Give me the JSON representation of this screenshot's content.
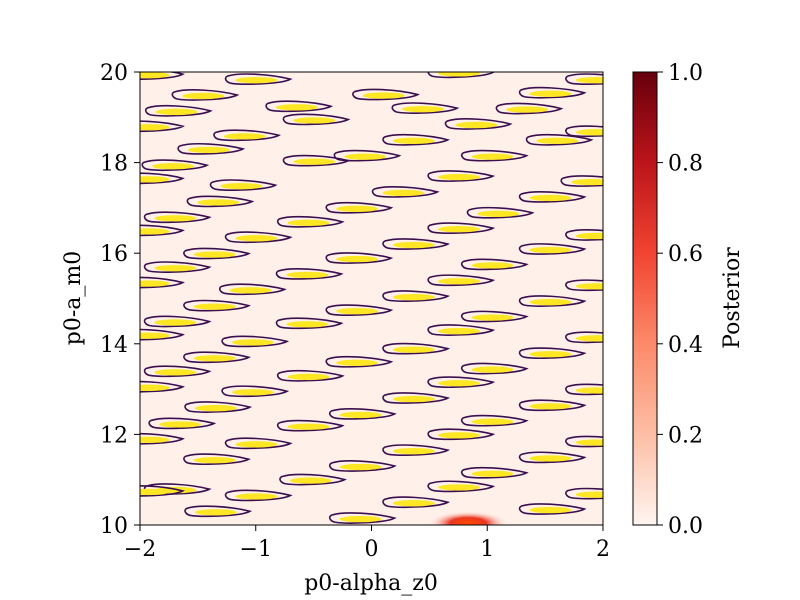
{
  "chart_data": {
    "type": "heatmap",
    "title": "",
    "xlabel": "p0-alpha_z0",
    "ylabel": "p0-a_m0",
    "xlim": [
      -2,
      2
    ],
    "ylim": [
      10,
      20
    ],
    "x_ticks": [
      -2,
      -1,
      0,
      1,
      2
    ],
    "x_tick_labels": [
      "−2",
      "−1",
      "0",
      "1",
      "2"
    ],
    "y_ticks": [
      10,
      12,
      14,
      16,
      18,
      20
    ],
    "y_tick_labels": [
      "10",
      "12",
      "14",
      "16",
      "18",
      "20"
    ],
    "colorbar": {
      "label": "Posterior",
      "range": [
        0.0,
        1.0
      ],
      "ticks": [
        0.0,
        0.2,
        0.4,
        0.6,
        0.8,
        1.0
      ],
      "tick_labels": [
        "0.0",
        "0.2",
        "0.4",
        "0.6",
        "0.8",
        "1.0"
      ],
      "colormap": [
        "#fff5f0",
        "#fdbea5",
        "#fc8a6a",
        "#f14432",
        "#bc141a",
        "#67000d"
      ]
    },
    "background_value": 0.02,
    "peak": {
      "x": 0.8,
      "y": 10.0,
      "value": 1.0
    },
    "contour_color": "#3b0f4f",
    "contour_fill_color": "#fde725",
    "contour_modes": [
      {
        "x": -1.02,
        "y": 19.82
      },
      {
        "x": -1.48,
        "y": 19.47
      },
      {
        "x": -0.67,
        "y": 19.22
      },
      {
        "x": -1.71,
        "y": 19.12
      },
      {
        "x": -1.12,
        "y": 18.58
      },
      {
        "x": -0.52,
        "y": 18.93
      },
      {
        "x": 0.08,
        "y": 19.48
      },
      {
        "x": -1.43,
        "y": 18.28
      },
      {
        "x": -1.74,
        "y": 17.92
      },
      {
        "x": -0.52,
        "y": 18.02
      },
      {
        "x": -0.08,
        "y": 18.13
      },
      {
        "x": -1.15,
        "y": 17.48
      },
      {
        "x": -1.35,
        "y": 17.12
      },
      {
        "x": -1.72,
        "y": 16.77
      },
      {
        "x": -0.57,
        "y": 16.67
      },
      {
        "x": -1.02,
        "y": 16.33
      },
      {
        "x": -0.15,
        "y": 16.98
      },
      {
        "x": -1.38,
        "y": 15.97
      },
      {
        "x": -1.72,
        "y": 15.67
      },
      {
        "x": -0.58,
        "y": 15.52
      },
      {
        "x": -1.07,
        "y": 15.18
      },
      {
        "x": -0.15,
        "y": 15.87
      },
      {
        "x": -1.38,
        "y": 14.82
      },
      {
        "x": -1.72,
        "y": 14.47
      },
      {
        "x": -0.58,
        "y": 14.43
      },
      {
        "x": -1.05,
        "y": 14.03
      },
      {
        "x": -0.15,
        "y": 14.72
      },
      {
        "x": -1.38,
        "y": 13.68
      },
      {
        "x": -1.72,
        "y": 13.37
      },
      {
        "x": -0.57,
        "y": 13.27
      },
      {
        "x": -1.05,
        "y": 12.93
      },
      {
        "x": -0.15,
        "y": 13.58
      },
      {
        "x": -1.37,
        "y": 12.58
      },
      {
        "x": -1.68,
        "y": 12.22
      },
      {
        "x": -0.57,
        "y": 12.17
      },
      {
        "x": -1.02,
        "y": 11.78
      },
      {
        "x": -0.12,
        "y": 12.43
      },
      {
        "x": -1.38,
        "y": 11.43
      },
      {
        "x": -1.72,
        "y": 10.77
      },
      {
        "x": -0.55,
        "y": 10.98
      },
      {
        "x": -1.02,
        "y": 10.63
      },
      {
        "x": -0.12,
        "y": 11.28
      },
      {
        "x": -1.37,
        "y": 10.28
      },
      {
        "x": -0.12,
        "y": 10.13
      },
      {
        "x": 0.42,
        "y": 19.18
      },
      {
        "x": 0.73,
        "y": 19.97
      },
      {
        "x": 0.88,
        "y": 18.83
      },
      {
        "x": 1.32,
        "y": 19.17
      },
      {
        "x": 1.52,
        "y": 19.52
      },
      {
        "x": 1.92,
        "y": 19.82
      },
      {
        "x": 0.34,
        "y": 18.48
      },
      {
        "x": 1.58,
        "y": 18.48
      },
      {
        "x": 1.02,
        "y": 18.13
      },
      {
        "x": 1.92,
        "y": 18.67
      },
      {
        "x": 0.25,
        "y": 17.33
      },
      {
        "x": 0.73,
        "y": 17.68
      },
      {
        "x": 1.52,
        "y": 17.22
      },
      {
        "x": 1.88,
        "y": 17.57
      },
      {
        "x": 1.07,
        "y": 16.87
      },
      {
        "x": 0.73,
        "y": 16.53
      },
      {
        "x": 0.34,
        "y": 16.18
      },
      {
        "x": 1.92,
        "y": 16.38
      },
      {
        "x": 1.52,
        "y": 16.07
      },
      {
        "x": 1.02,
        "y": 15.73
      },
      {
        "x": 0.73,
        "y": 15.38
      },
      {
        "x": 1.92,
        "y": 15.27
      },
      {
        "x": 0.34,
        "y": 15.03
      },
      {
        "x": 1.52,
        "y": 14.92
      },
      {
        "x": 1.02,
        "y": 14.58
      },
      {
        "x": 0.73,
        "y": 14.28
      },
      {
        "x": 1.92,
        "y": 14.12
      },
      {
        "x": 0.34,
        "y": 13.87
      },
      {
        "x": 1.52,
        "y": 13.77
      },
      {
        "x": 1.02,
        "y": 13.43
      },
      {
        "x": 0.73,
        "y": 13.13
      },
      {
        "x": 1.92,
        "y": 12.97
      },
      {
        "x": 0.34,
        "y": 12.78
      },
      {
        "x": 1.52,
        "y": 12.62
      },
      {
        "x": 1.02,
        "y": 12.28
      },
      {
        "x": 0.73,
        "y": 11.98
      },
      {
        "x": 1.92,
        "y": 11.82
      },
      {
        "x": 0.34,
        "y": 11.63
      },
      {
        "x": 1.52,
        "y": 11.47
      },
      {
        "x": 1.02,
        "y": 11.13
      },
      {
        "x": 0.73,
        "y": 10.83
      },
      {
        "x": 1.92,
        "y": 10.67
      },
      {
        "x": 0.34,
        "y": 10.48
      },
      {
        "x": 1.52,
        "y": 10.33
      },
      {
        "x": -1.95,
        "y": 19.93
      },
      {
        "x": -1.95,
        "y": 18.78
      },
      {
        "x": -1.95,
        "y": 17.63
      },
      {
        "x": -1.95,
        "y": 16.48
      },
      {
        "x": -1.95,
        "y": 15.33
      },
      {
        "x": -1.95,
        "y": 14.18
      },
      {
        "x": -1.95,
        "y": 13.03
      },
      {
        "x": -1.95,
        "y": 11.88
      },
      {
        "x": -1.95,
        "y": 10.73
      }
    ]
  }
}
